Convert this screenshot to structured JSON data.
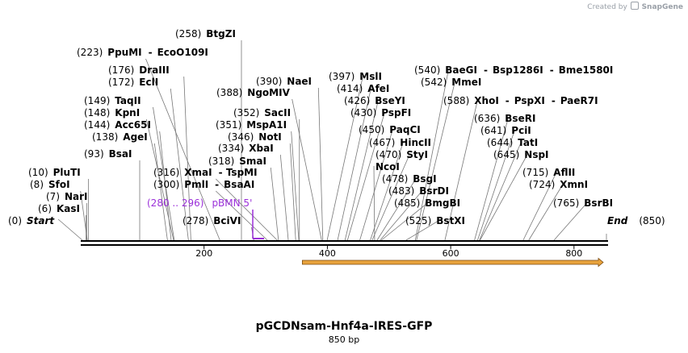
{
  "header": {
    "credit_prefix": "Created by",
    "credit_brand": "SnapGene"
  },
  "plasmid": {
    "name": "pGCDNsam-Hnf4a-IRES-GFP",
    "length_label": "850 bp",
    "length": 850
  },
  "axis": {
    "ticks": [
      200,
      400,
      600,
      800
    ]
  },
  "sites": [
    {
      "pos": "(0)",
      "name": "Start",
      "italic": true,
      "bp": 0,
      "dx": 0
    },
    {
      "pos": "(6)",
      "name": "KasI",
      "bp": 6,
      "dx": 0
    },
    {
      "pos": "(7)",
      "name": "NarI",
      "bp": 7,
      "dx": 0
    },
    {
      "pos": "(8)",
      "name": "SfoI",
      "bp": 8,
      "dx": 0
    },
    {
      "pos": "(10)",
      "name": "PluTI",
      "bp": 10,
      "dx": 0
    },
    {
      "pos": "(93)",
      "name": "BsaI",
      "bp": 93,
      "dx": 0
    },
    {
      "pos": "(138)",
      "name": "AgeI",
      "bp": 138,
      "dx": 0
    },
    {
      "pos": "(144)",
      "name": "Acc65I",
      "bp": 144,
      "dx": 0
    },
    {
      "pos": "(148)",
      "name": "KpnI",
      "bp": 148,
      "dx": 0
    },
    {
      "pos": "(149)",
      "name": "TaqII",
      "bp": 149,
      "dx": 0
    },
    {
      "pos": "(172)",
      "name": "EclI",
      "bp": 172,
      "dx": 0
    },
    {
      "pos": "(176)",
      "name": "DraIII",
      "bp": 176,
      "dx": 0
    },
    {
      "pos": "(223)",
      "name": "PpuMI",
      "extra": [
        "EcoO109I"
      ],
      "bp": 223,
      "dx": 0
    },
    {
      "pos": "(258)",
      "name": "BtgZI",
      "bp": 258,
      "dx": 0
    },
    {
      "pos": "(316)",
      "name": "XmaI",
      "extra": [
        "TspMI"
      ],
      "bp": 316,
      "dx": -90
    },
    {
      "pos": "(300)",
      "name": "PmlI",
      "extra": [
        "BsaAI"
      ],
      "bp": 300,
      "dx": -60
    },
    {
      "pos": "(278)",
      "name": "BciVI",
      "bp": 278,
      "dx": -15
    },
    {
      "pos": "(318)",
      "name": "SmaI",
      "bp": 318,
      "dx": 0
    },
    {
      "pos": "(334)",
      "name": "XbaI",
      "bp": 334,
      "dx": 0
    },
    {
      "pos": "(346)",
      "name": "NotI",
      "bp": 346,
      "dx": 0
    },
    {
      "pos": "(351)",
      "name": "MspA1I",
      "bp": 351,
      "dx": 0
    },
    {
      "pos": "(352)",
      "name": "SacII",
      "bp": 352,
      "dx": 0
    },
    {
      "pos": "(388)",
      "name": "NgoMIV",
      "bp": 388,
      "dx": 0
    },
    {
      "pos": "(390)",
      "name": "NaeI",
      "bp": 390,
      "dx": 0
    },
    {
      "pos": "(397)",
      "name": "MslI",
      "bp": 397,
      "dx": 0
    },
    {
      "pos": "(414)",
      "name": "AfeI",
      "bp": 414,
      "dx": 0
    },
    {
      "pos": "(426)",
      "name": "BseYI",
      "bp": 426,
      "dx": 0
    },
    {
      "pos": "(430)",
      "name": "PspFI",
      "bp": 430,
      "dx": 0
    },
    {
      "pos": "(450)",
      "name": "PaqCI",
      "bp": 450,
      "dx": 0
    },
    {
      "pos": "(467)",
      "name": "HincII",
      "bp": 467,
      "dx": 0
    },
    {
      "pos": "(470)",
      "name": "StyI",
      "bp": 470,
      "dx": 0
    },
    {
      "pos": "",
      "name": "NcoI",
      "bp": 474,
      "dx": 0
    },
    {
      "pos": "(478)",
      "name": "BsgI",
      "bp": 478,
      "dx": 0
    },
    {
      "pos": "(483)",
      "name": "BsrDI",
      "bp": 483,
      "dx": 0
    },
    {
      "pos": "(485)",
      "name": "BmgBI",
      "bp": 485,
      "dx": 0
    },
    {
      "pos": "(525)",
      "name": "BstXI",
      "bp": 525,
      "dx": 0
    },
    {
      "pos": "(540)",
      "name": "BaeGI",
      "extra": [
        "Bsp1286I",
        "Bme1580I"
      ],
      "bp": 540,
      "dx": 0
    },
    {
      "pos": "(542)",
      "name": "MmeI",
      "bp": 542,
      "dx": 0
    },
    {
      "pos": "(588)",
      "name": "XhoI",
      "extra": [
        "PspXI",
        "PaeR7I"
      ],
      "bp": 588,
      "dx": 0
    },
    {
      "pos": "(636)",
      "name": "BseRI",
      "bp": 636,
      "dx": 0
    },
    {
      "pos": "(641)",
      "name": "PciI",
      "bp": 641,
      "dx": 0
    },
    {
      "pos": "(644)",
      "name": "TatI",
      "bp": 644,
      "dx": 0
    },
    {
      "pos": "(645)",
      "name": "NspI",
      "bp": 645,
      "dx": 0
    },
    {
      "pos": "(715)",
      "name": "AflII",
      "bp": 715,
      "dx": 0
    },
    {
      "pos": "(724)",
      "name": "XmnI",
      "bp": 724,
      "dx": 0
    },
    {
      "pos": "(765)",
      "name": "BsrBI",
      "bp": 765,
      "dx": 0
    },
    {
      "pos": "(850)",
      "name": "End",
      "italic": true,
      "bp": 850,
      "dx": 0
    }
  ],
  "primer": {
    "range": "(280 .. 296)",
    "name": "pBMN 5'",
    "color": "#9b30d9"
  },
  "feature": {
    "color": "#e8a33c",
    "outline": "#7a4a10",
    "from_bp": 362,
    "to_bp": 850
  }
}
